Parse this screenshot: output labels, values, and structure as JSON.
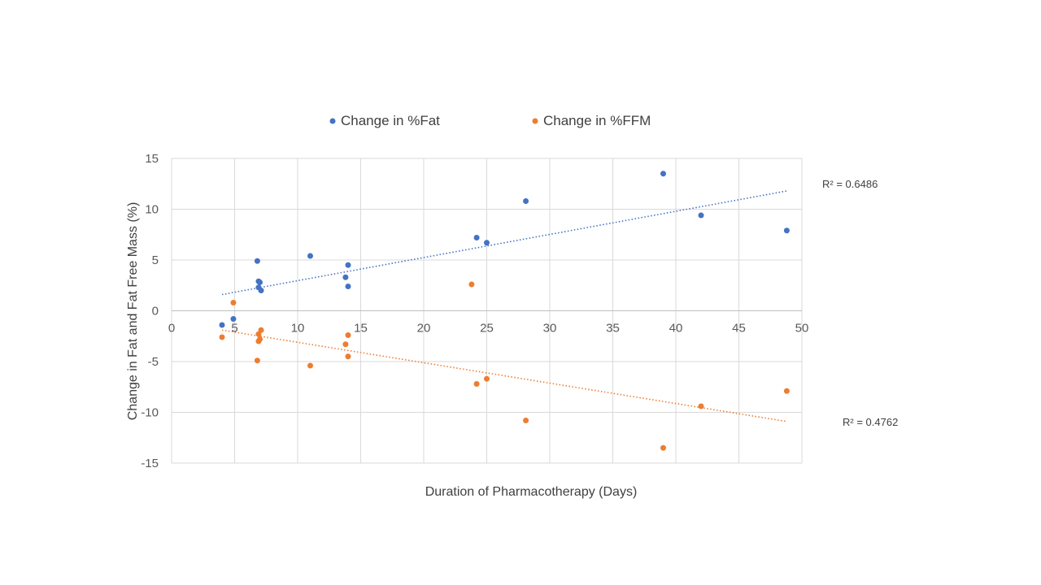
{
  "chart_data": {
    "type": "scatter",
    "title": "",
    "xlabel": "Duration of Pharmacotherapy (Days)",
    "ylabel": "Change in Fat and Fat Free Mass (%)",
    "xlim": [
      0,
      50
    ],
    "ylim": [
      -15,
      15
    ],
    "x_ticks": [
      "0",
      "5",
      "10",
      "15",
      "20",
      "25",
      "30",
      "35",
      "40",
      "45",
      "50"
    ],
    "y_ticks": [
      "15",
      "10",
      "5",
      "0",
      "-5",
      "-10",
      "-15"
    ],
    "grid": true,
    "legend_position": "top",
    "series": [
      {
        "name": "Change in %Fat",
        "color": "#4472C4",
        "points": [
          [
            4,
            -1.4
          ],
          [
            4.9,
            -0.8
          ],
          [
            6.8,
            4.9
          ],
          [
            6.9,
            2.9
          ],
          [
            7.0,
            2.8
          ],
          [
            6.9,
            2.3
          ],
          [
            7.1,
            2.0
          ],
          [
            11,
            5.4
          ],
          [
            13.8,
            3.3
          ],
          [
            14,
            4.5
          ],
          [
            14,
            2.4
          ],
          [
            24.2,
            7.2
          ],
          [
            25,
            6.7
          ],
          [
            28.1,
            10.8
          ],
          [
            39,
            13.5
          ],
          [
            42,
            9.4
          ],
          [
            48.8,
            7.9
          ]
        ],
        "trendline": {
          "x": [
            4,
            48.8
          ],
          "y": [
            1.6,
            11.8
          ]
        },
        "r2_label": "R² = 0.6486"
      },
      {
        "name": "Change in %FFM",
        "color": "#ED7D31",
        "points": [
          [
            4,
            -2.6
          ],
          [
            4.9,
            0.8
          ],
          [
            6.8,
            -4.9
          ],
          [
            6.9,
            -3.0
          ],
          [
            7.0,
            -2.8
          ],
          [
            6.9,
            -2.3
          ],
          [
            7.1,
            -1.9
          ],
          [
            11,
            -5.4
          ],
          [
            13.8,
            -3.3
          ],
          [
            14,
            -4.5
          ],
          [
            14,
            -2.4
          ],
          [
            23.8,
            2.6
          ],
          [
            24.2,
            -7.2
          ],
          [
            25,
            -6.7
          ],
          [
            28.1,
            -10.8
          ],
          [
            39,
            -13.5
          ],
          [
            42,
            -9.4
          ],
          [
            48.8,
            -7.9
          ]
        ],
        "trendline": {
          "x": [
            4,
            48.8
          ],
          "y": [
            -1.9,
            -10.9
          ]
        },
        "r2_label": "R² = 0.4762"
      }
    ]
  }
}
